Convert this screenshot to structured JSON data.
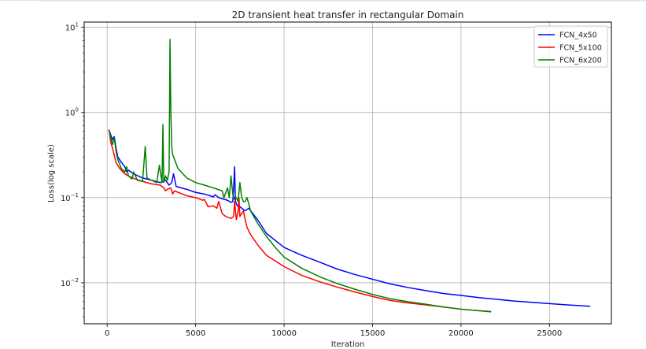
{
  "chart_data": {
    "type": "line",
    "title": "2D  transient heat transfer in rectangular Domain",
    "xlabel": "Iteration",
    "ylabel": "Loss(log scale)",
    "xlim": [
      -1300,
      28500
    ],
    "ylim": [
      0.0033,
      11.5
    ],
    "yscale": "log",
    "grid": true,
    "legend_position": "top-right",
    "x_ticks": [
      {
        "value": 0,
        "label": "0"
      },
      {
        "value": 5000,
        "label": "5000"
      },
      {
        "value": 10000,
        "label": "10000"
      },
      {
        "value": 15000,
        "label": "15000"
      },
      {
        "value": 20000,
        "label": "20000"
      },
      {
        "value": 25000,
        "label": "25000"
      }
    ],
    "y_ticks": [
      {
        "value": 0.01,
        "base": "10",
        "exp": "−2"
      },
      {
        "value": 0.1,
        "base": "10",
        "exp": "−1"
      },
      {
        "value": 1,
        "base": "10",
        "exp": "0"
      },
      {
        "value": 10,
        "base": "10",
        "exp": "1"
      }
    ],
    "series": [
      {
        "name": "FCN_4x50",
        "color": "#0000ff",
        "x": [
          100,
          300,
          400,
          500,
          600,
          800,
          1000,
          1100,
          1200,
          1500,
          2000,
          2500,
          3000,
          3300,
          3500,
          3650,
          3750,
          3900,
          4500,
          5000,
          5500,
          6000,
          6100,
          6300,
          6500,
          6800,
          7000,
          7100,
          7150,
          7200,
          7250,
          7350,
          7500,
          7800,
          8000,
          8500,
          9000,
          10000,
          11000,
          12000,
          13000,
          14000,
          15000,
          16000,
          17000,
          18000,
          19000,
          20000,
          21000,
          22000,
          23000,
          24000,
          25000,
          26000,
          27300
        ],
        "y": [
          0.62,
          0.48,
          0.52,
          0.38,
          0.3,
          0.26,
          0.23,
          0.2,
          0.21,
          0.19,
          0.17,
          0.16,
          0.15,
          0.16,
          0.14,
          0.15,
          0.19,
          0.135,
          0.125,
          0.115,
          0.11,
          0.102,
          0.108,
          0.1,
          0.097,
          0.093,
          0.088,
          0.09,
          0.13,
          0.23,
          0.09,
          0.08,
          0.078,
          0.07,
          0.075,
          0.055,
          0.038,
          0.026,
          0.021,
          0.0175,
          0.0145,
          0.0125,
          0.011,
          0.0097,
          0.0088,
          0.0081,
          0.0075,
          0.0071,
          0.0067,
          0.0064,
          0.0061,
          0.0059,
          0.0057,
          0.0055,
          0.0053
        ]
      },
      {
        "name": "FCN_5x100",
        "color": "#ff0000",
        "x": [
          100,
          200,
          300,
          500,
          700,
          1000,
          1300,
          1600,
          2000,
          2500,
          3000,
          3200,
          3300,
          3400,
          3600,
          3700,
          3800,
          4500,
          5000,
          5400,
          5500,
          5700,
          6000,
          6200,
          6300,
          6500,
          6700,
          7000,
          7150,
          7200,
          7300,
          7400,
          7450,
          7500,
          7600,
          7700,
          7800,
          7900,
          8100,
          8500,
          9000,
          10000,
          11000,
          12000,
          13000,
          14000,
          15000,
          16000,
          17000,
          18000,
          19000,
          20000,
          21000,
          21700
        ],
        "y": [
          0.63,
          0.45,
          0.38,
          0.26,
          0.22,
          0.19,
          0.175,
          0.165,
          0.155,
          0.145,
          0.14,
          0.13,
          0.12,
          0.125,
          0.13,
          0.11,
          0.12,
          0.105,
          0.1,
          0.093,
          0.095,
          0.078,
          0.08,
          0.075,
          0.09,
          0.065,
          0.06,
          0.057,
          0.06,
          0.09,
          0.055,
          0.07,
          0.1,
          0.06,
          0.065,
          0.07,
          0.055,
          0.045,
          0.037,
          0.028,
          0.021,
          0.0155,
          0.0122,
          0.0103,
          0.0089,
          0.0078,
          0.0069,
          0.0062,
          0.0058,
          0.0055,
          0.0052,
          0.0049,
          0.0047,
          0.0046
        ]
      },
      {
        "name": "FCN_6x200",
        "color": "#008000",
        "x": [
          100,
          300,
          400,
          500,
          600,
          800,
          1000,
          1100,
          1200,
          1400,
          1500,
          1700,
          2000,
          2150,
          2250,
          2500,
          2800,
          2950,
          3100,
          3150,
          3200,
          3300,
          3400,
          3500,
          3550,
          3600,
          3650,
          3700,
          4000,
          4500,
          5000,
          5500,
          6000,
          6500,
          6600,
          6800,
          6900,
          7000,
          7100,
          7200,
          7300,
          7400,
          7500,
          7600,
          7700,
          7800,
          7900,
          8000,
          8100,
          8500,
          9000,
          9500,
          10000,
          11000,
          12000,
          13000,
          14000,
          15000,
          16000,
          17000,
          18000,
          19000,
          20000,
          21000,
          21700
        ],
        "y": [
          0.62,
          0.42,
          0.5,
          0.35,
          0.28,
          0.22,
          0.2,
          0.23,
          0.18,
          0.165,
          0.2,
          0.16,
          0.155,
          0.4,
          0.17,
          0.16,
          0.15,
          0.24,
          0.15,
          0.72,
          0.15,
          0.18,
          0.16,
          0.2,
          7.2,
          1.0,
          0.4,
          0.32,
          0.22,
          0.17,
          0.15,
          0.14,
          0.13,
          0.12,
          0.1,
          0.13,
          0.1,
          0.18,
          0.11,
          0.095,
          0.1,
          0.09,
          0.15,
          0.1,
          0.09,
          0.09,
          0.1,
          0.085,
          0.07,
          0.05,
          0.035,
          0.026,
          0.02,
          0.0148,
          0.0118,
          0.0098,
          0.0084,
          0.0073,
          0.0065,
          0.006,
          0.0056,
          0.0052,
          0.0049,
          0.0047,
          0.00455
        ]
      }
    ]
  }
}
